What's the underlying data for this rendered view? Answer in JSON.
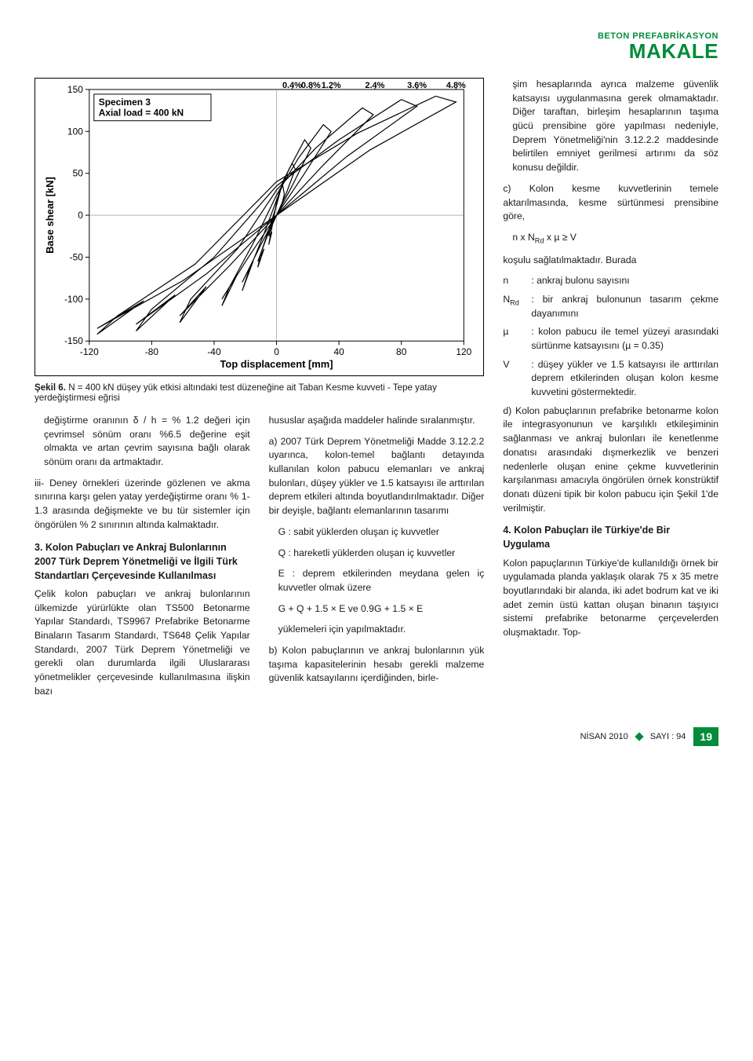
{
  "masthead": {
    "line1": "BETON PREFABRİKASYON",
    "line2": "MAKALE"
  },
  "figure": {
    "type": "line",
    "spec_title": "Specimen 3",
    "spec_sub": "Axial load = 400 kN",
    "ylabel": "Base shear [kN]",
    "xlabel": "Top displacement [mm]",
    "xlim": [
      -120,
      120
    ],
    "xtick_step": 40,
    "ylim": [
      -150,
      150
    ],
    "ytick_step": 50,
    "axis_color": "#000000",
    "line_color": "#000000",
    "line_width": 1.2,
    "bg": "#ffffff",
    "drift_labels": [
      {
        "pct": "0.4%",
        "x": 10
      },
      {
        "pct": "0.8%",
        "x": 22
      },
      {
        "pct": "1.2%",
        "x": 35
      },
      {
        "pct": "2.4%",
        "x": 63
      },
      {
        "pct": "3.6%",
        "x": 90
      },
      {
        "pct": "4.8%",
        "x": 115
      }
    ],
    "loops": [
      [
        [
          -5,
          -25
        ],
        [
          -3,
          -10
        ],
        [
          0,
          0
        ],
        [
          3,
          10
        ],
        [
          5,
          25
        ],
        [
          4,
          35
        ],
        [
          2,
          30
        ],
        [
          0,
          15
        ],
        [
          -2,
          -5
        ],
        [
          -4,
          -25
        ],
        [
          -5,
          -35
        ],
        [
          -3,
          -20
        ],
        [
          -5,
          -25
        ]
      ],
      [
        [
          -12,
          -55
        ],
        [
          -6,
          -25
        ],
        [
          0,
          0
        ],
        [
          6,
          25
        ],
        [
          12,
          55
        ],
        [
          10,
          62
        ],
        [
          4,
          40
        ],
        [
          0,
          12
        ],
        [
          -4,
          -12
        ],
        [
          -10,
          -45
        ],
        [
          -12,
          -62
        ],
        [
          -8,
          -40
        ],
        [
          -12,
          -55
        ]
      ],
      [
        [
          -22,
          -80
        ],
        [
          -10,
          -35
        ],
        [
          0,
          0
        ],
        [
          10,
          35
        ],
        [
          22,
          80
        ],
        [
          18,
          90
        ],
        [
          8,
          55
        ],
        [
          0,
          18
        ],
        [
          -8,
          -22
        ],
        [
          -18,
          -68
        ],
        [
          -22,
          -90
        ],
        [
          -15,
          -55
        ],
        [
          -22,
          -80
        ]
      ],
      [
        [
          -35,
          -100
        ],
        [
          -18,
          -50
        ],
        [
          0,
          0
        ],
        [
          18,
          50
        ],
        [
          35,
          100
        ],
        [
          30,
          108
        ],
        [
          14,
          68
        ],
        [
          0,
          24
        ],
        [
          -14,
          -30
        ],
        [
          -30,
          -85
        ],
        [
          -35,
          -108
        ],
        [
          -25,
          -70
        ],
        [
          -35,
          -100
        ]
      ],
      [
        [
          -62,
          -120
        ],
        [
          -30,
          -60
        ],
        [
          0,
          0
        ],
        [
          30,
          60
        ],
        [
          62,
          120
        ],
        [
          55,
          128
        ],
        [
          25,
          80
        ],
        [
          0,
          30
        ],
        [
          -25,
          -40
        ],
        [
          -55,
          -100
        ],
        [
          -62,
          -128
        ],
        [
          -45,
          -85
        ],
        [
          -62,
          -120
        ]
      ],
      [
        [
          -90,
          -130
        ],
        [
          -45,
          -70
        ],
        [
          0,
          0
        ],
        [
          45,
          70
        ],
        [
          90,
          130
        ],
        [
          80,
          138
        ],
        [
          40,
          90
        ],
        [
          0,
          35
        ],
        [
          -40,
          -50
        ],
        [
          -80,
          -112
        ],
        [
          -90,
          -138
        ],
        [
          -65,
          -95
        ],
        [
          -90,
          -130
        ]
      ],
      [
        [
          -115,
          -135
        ],
        [
          -60,
          -78
        ],
        [
          0,
          0
        ],
        [
          60,
          78
        ],
        [
          115,
          135
        ],
        [
          102,
          142
        ],
        [
          52,
          98
        ],
        [
          0,
          40
        ],
        [
          -52,
          -58
        ],
        [
          -102,
          -120
        ],
        [
          -115,
          -142
        ],
        [
          -85,
          -102
        ],
        [
          -115,
          -135
        ]
      ]
    ]
  },
  "caption_b": "Şekil 6.",
  "caption_t": " N = 400 kN düşey yük etkisi altındaki test düzeneğine ait Taban Kesme kuvveti - Tepe yatay yerdeğiştirmesi eğrisi",
  "c1": {
    "p1": "değiştirme oranının δ / h = % 1.2 değeri için çevrimsel sönüm oranı %6.5 değerine eşit olmakta ve artan çevrim sayısına bağlı olarak sönüm oranı da artmaktadır.",
    "p2": "iii- Deney örnekleri üzerinde gözlenen ve akma sınırına karşı gelen yatay yerdeğiştirme oranı % 1-1.3 arasında değişmekte ve bu tür sistemler için öngörülen % 2 sınırının altında kalmaktadır.",
    "h": "3. Kolon Pabuçları ve Ankraj Bulonlarının 2007 Türk Deprem Yönetmeliği ve İlgili Türk Standartları Çerçevesinde Kullanılması",
    "p3": "Çelik kolon pabuçları ve ankraj bulonlarının ülkemizde yürürlükte olan TS500 Betonarme Yapılar Standardı, TS9967 Prefabrike Betonarme Binaların Tasarım Standardı, TS648 Çelik Yapılar Standardı, 2007 Türk Deprem Yönetmeliği ve gerekli olan durumlarda ilgili Uluslararası yönetmelikler çerçevesinde kullanılmasına ilişkin bazı"
  },
  "c2": {
    "p1": "hususlar aşağıda maddeler halinde sıralanmıştır.",
    "p2": "a) 2007 Türk Deprem Yönetmeliği Madde 3.12.2.2 uyarınca, kolon-temel bağlantı detayında kullanılan kolon pabucu elemanları ve ankraj bulonları, düşey yükler ve 1.5 katsayısı ile arttırılan deprem etkileri altında boyutlandırılmaktadır. Diğer bir deyişle, bağlantı elemanlarının tasarımı",
    "l1": "G : sabit yüklerden oluşan iç kuvvetler",
    "l2": "Q : hareketli yüklerden oluşan iç kuvvetler",
    "l3": "E : deprem etkilerinden meydana gelen iç kuvvetler olmak üzere",
    "eq": "G + Q + 1.5 × E ve 0.9G + 1.5 × E",
    "p3": "yüklemeleri için yapılmaktadır.",
    "p4": "b) Kolon pabuçlarının ve ankraj bulonlarının yük taşıma kapasitelerinin hesabı gerekli malzeme güvenlik katsayılarını içerdiğinden, birle-"
  },
  "c3": {
    "p1": "şim hesaplarında ayrıca malzeme güvenlik katsayısı uygulanmasına gerek olmamaktadır. Diğer taraftan, birleşim hesaplarının taşıma gücü prensibine göre yapılması nedeniyle, Deprem Yönetmeliği'nin 3.12.2.2 maddesinde belirtilen emniyet gerilmesi artırımı da söz konusu değildir.",
    "p2": "c) Kolon kesme kuvvetlerinin temele aktarılmasında, kesme sürtünmesi prensibine göre,",
    "eq": "n x N",
    "eq_sub": "Rd",
    "eq2": " x µ ≥ V",
    "p3": "koşulu sağlatılmaktadır. Burada",
    "d_n": "n",
    "d_n_t": ": ankraj bulonu sayısını",
    "d_N": "N",
    "d_N_sub": "Rd",
    "d_N_t": ": bir ankraj bulonunun tasarım çekme dayanımını",
    "d_mu": "µ",
    "d_mu_t": ": kolon pabucu ile temel yüzeyi arasındaki sürtünme katsayısını (µ = 0.35)",
    "d_V": "V",
    "d_V_t": ": düşey yükler ve 1.5 katsayısı ile arttırılan deprem etkilerinden oluşan kolon kesme kuvvetini göstermektedir.",
    "p4": "d) Kolon pabuçlarının prefabrike betonarme kolon ile integrasyonunun ve karşılıklı etkileşiminin sağlanması ve ankraj bulonları ile kenetlenme donatısı arasındaki dışmerkezlik ve benzeri nedenlerle oluşan enine çekme kuvvetlerinin karşılanması amacıyla öngörülen örnek konstrüktif donatı düzeni tipik bir kolon pabucu için Şekil 1'de verilmiştir.",
    "h": "4. Kolon Pabuçları ile Türkiye'de Bir Uygulama",
    "p5": "Kolon papuçlarının Türkiye'de kullanıldığı örnek bir uygulamada planda yaklaşık olarak 75 x 35 metre boyutlarındaki bir alanda, iki adet bodrum kat ve iki adet zemin üstü kattan oluşan binanın taşıyıcı sistemi prefabrike betonarme çerçevelerden oluşmaktadır. Top-"
  },
  "footer": {
    "month": "NİSAN 2010",
    "issue": "SAYI : 94",
    "page": "19"
  }
}
